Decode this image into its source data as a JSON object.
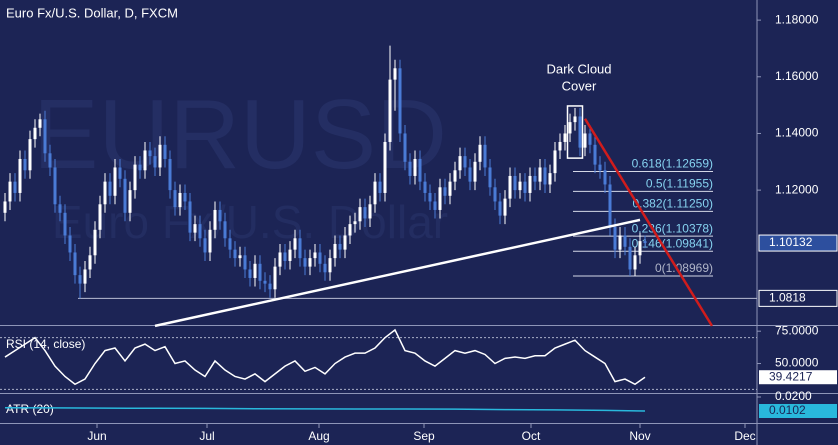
{
  "chart_data": [
    {
      "type": "candlestick",
      "title": "Euro Fx/U.S. Dollar, D, FXCM",
      "watermark": [
        "EURUSD",
        "Euro Fx/U.S. Dollar"
      ],
      "up_color": "#ffffff",
      "down_color": "#4a7bd6",
      "x": [
        0,
        1,
        2,
        3,
        4,
        5,
        6,
        7,
        8,
        9,
        10,
        11,
        12,
        13,
        14,
        15,
        16,
        17,
        18,
        19,
        20,
        21,
        22,
        23,
        24,
        25,
        26,
        27,
        28,
        29,
        30,
        31,
        32,
        33,
        34,
        35,
        36,
        37,
        38,
        39,
        40,
        41,
        42,
        43,
        44,
        45,
        46,
        47,
        48,
        49,
        50,
        51,
        52,
        53,
        54,
        55,
        56,
        57,
        58,
        59,
        60,
        61,
        62,
        63,
        64,
        65,
        66,
        67,
        68,
        69,
        70,
        71,
        72,
        73,
        74,
        75,
        76,
        77,
        78,
        79,
        80,
        81,
        82,
        83,
        84,
        85,
        86,
        87,
        88,
        89,
        90,
        91,
        92,
        93,
        94,
        95,
        96,
        97,
        98,
        99,
        100,
        101,
        102,
        103,
        104,
        105,
        106,
        107,
        108,
        109,
        110,
        111,
        112,
        113,
        114,
        115,
        116,
        117,
        118,
        119,
        120,
        121,
        122,
        123,
        124,
        125,
        126,
        127,
        128
      ],
      "open": [
        1.112,
        1.116,
        1.123,
        1.119,
        1.131,
        1.127,
        1.138,
        1.142,
        1.145,
        1.133,
        1.128,
        1.115,
        1.112,
        1.104,
        1.098,
        1.09,
        1.087,
        1.092,
        1.097,
        1.106,
        1.115,
        1.123,
        1.118,
        1.128,
        1.124,
        1.112,
        1.12,
        1.129,
        1.127,
        1.134,
        1.132,
        1.128,
        1.136,
        1.131,
        1.12,
        1.114,
        1.119,
        1.116,
        1.105,
        1.108,
        1.103,
        1.098,
        1.106,
        1.113,
        1.109,
        1.103,
        1.099,
        1.096,
        1.097,
        1.092,
        1.089,
        1.094,
        1.088,
        1.087,
        1.085,
        1.093,
        1.098,
        1.095,
        1.099,
        1.103,
        1.096,
        1.093,
        1.096,
        1.098,
        1.094,
        1.091,
        1.096,
        1.101,
        1.099,
        1.104,
        1.108,
        1.109,
        1.114,
        1.11,
        1.115,
        1.123,
        1.119,
        1.137,
        1.159,
        1.163,
        1.14,
        1.13,
        1.125,
        1.131,
        1.123,
        1.119,
        1.116,
        1.113,
        1.121,
        1.118,
        1.123,
        1.127,
        1.132,
        1.128,
        1.123,
        1.13,
        1.136,
        1.128,
        1.121,
        1.116,
        1.111,
        1.117,
        1.125,
        1.12,
        1.123,
        1.119,
        1.125,
        1.123,
        1.128,
        1.122,
        1.126,
        1.134,
        1.137,
        1.14,
        1.144,
        1.146,
        1.135,
        1.14,
        1.136,
        1.129,
        1.127,
        1.122,
        1.107,
        1.099,
        1.104,
        1.1,
        1.092,
        1.097,
        1.102
      ],
      "high": [
        1.119,
        1.126,
        1.126,
        1.134,
        1.134,
        1.141,
        1.145,
        1.147,
        1.148,
        1.136,
        1.131,
        1.118,
        1.115,
        1.107,
        1.101,
        1.093,
        1.095,
        1.1,
        1.109,
        1.118,
        1.126,
        1.126,
        1.131,
        1.131,
        1.127,
        1.123,
        1.132,
        1.132,
        1.137,
        1.137,
        1.135,
        1.139,
        1.139,
        1.134,
        1.123,
        1.122,
        1.122,
        1.119,
        1.111,
        1.111,
        1.106,
        1.109,
        1.116,
        1.116,
        1.112,
        1.106,
        1.102,
        1.1,
        1.1,
        1.095,
        1.097,
        1.097,
        1.091,
        1.09,
        1.096,
        1.101,
        1.101,
        1.102,
        1.106,
        1.106,
        1.099,
        1.099,
        1.101,
        1.101,
        1.097,
        1.099,
        1.104,
        1.104,
        1.107,
        1.111,
        1.112,
        1.117,
        1.117,
        1.118,
        1.126,
        1.126,
        1.14,
        1.171,
        1.166,
        1.166,
        1.143,
        1.133,
        1.134,
        1.134,
        1.126,
        1.122,
        1.119,
        1.124,
        1.124,
        1.126,
        1.13,
        1.135,
        1.135,
        1.131,
        1.133,
        1.139,
        1.139,
        1.131,
        1.124,
        1.119,
        1.12,
        1.128,
        1.128,
        1.126,
        1.126,
        1.128,
        1.128,
        1.131,
        1.131,
        1.129,
        1.137,
        1.14,
        1.143,
        1.147,
        1.149,
        1.149,
        1.143,
        1.143,
        1.139,
        1.132,
        1.13,
        1.125,
        1.11,
        1.107,
        1.107,
        1.103,
        1.1,
        1.105,
        1.104
      ],
      "low": [
        1.109,
        1.113,
        1.116,
        1.116,
        1.124,
        1.124,
        1.135,
        1.139,
        1.13,
        1.125,
        1.112,
        1.109,
        1.101,
        1.095,
        1.087,
        1.0818,
        1.084,
        1.089,
        1.094,
        1.103,
        1.112,
        1.115,
        1.115,
        1.121,
        1.109,
        1.109,
        1.117,
        1.124,
        1.124,
        1.129,
        1.125,
        1.125,
        1.128,
        1.117,
        1.111,
        1.111,
        1.113,
        1.102,
        1.102,
        1.1,
        1.095,
        1.095,
        1.103,
        1.106,
        1.1,
        1.096,
        1.093,
        1.093,
        1.089,
        1.086,
        1.086,
        1.085,
        1.084,
        1.082,
        1.082,
        1.09,
        1.092,
        1.092,
        1.096,
        1.093,
        1.09,
        1.09,
        1.093,
        1.091,
        1.088,
        1.088,
        1.093,
        1.096,
        1.096,
        1.101,
        1.105,
        1.106,
        1.107,
        1.107,
        1.112,
        1.116,
        1.116,
        1.134,
        1.148,
        1.137,
        1.127,
        1.122,
        1.122,
        1.12,
        1.116,
        1.113,
        1.11,
        1.11,
        1.115,
        1.115,
        1.12,
        1.124,
        1.125,
        1.12,
        1.12,
        1.127,
        1.125,
        1.118,
        1.113,
        1.108,
        1.108,
        1.114,
        1.117,
        1.117,
        1.116,
        1.116,
        1.12,
        1.12,
        1.119,
        1.119,
        1.123,
        1.131,
        1.134,
        1.137,
        1.141,
        1.132,
        1.132,
        1.133,
        1.126,
        1.124,
        1.119,
        1.104,
        1.096,
        1.096,
        1.097,
        1.0897,
        1.0897,
        1.094,
        1.0995
      ],
      "close": [
        1.116,
        1.123,
        1.119,
        1.131,
        1.127,
        1.138,
        1.142,
        1.145,
        1.133,
        1.128,
        1.115,
        1.112,
        1.104,
        1.098,
        1.09,
        1.087,
        1.092,
        1.097,
        1.106,
        1.115,
        1.123,
        1.118,
        1.128,
        1.124,
        1.112,
        1.12,
        1.129,
        1.127,
        1.134,
        1.132,
        1.128,
        1.136,
        1.131,
        1.12,
        1.114,
        1.119,
        1.116,
        1.105,
        1.108,
        1.103,
        1.098,
        1.106,
        1.113,
        1.109,
        1.103,
        1.099,
        1.096,
        1.097,
        1.092,
        1.089,
        1.094,
        1.088,
        1.087,
        1.085,
        1.093,
        1.098,
        1.095,
        1.099,
        1.103,
        1.096,
        1.093,
        1.096,
        1.098,
        1.094,
        1.091,
        1.096,
        1.101,
        1.099,
        1.104,
        1.108,
        1.109,
        1.114,
        1.11,
        1.115,
        1.123,
        1.119,
        1.137,
        1.159,
        1.163,
        1.14,
        1.13,
        1.125,
        1.131,
        1.123,
        1.119,
        1.116,
        1.113,
        1.121,
        1.118,
        1.123,
        1.127,
        1.132,
        1.128,
        1.123,
        1.13,
        1.136,
        1.128,
        1.121,
        1.116,
        1.111,
        1.117,
        1.125,
        1.12,
        1.123,
        1.119,
        1.125,
        1.123,
        1.128,
        1.122,
        1.126,
        1.134,
        1.137,
        1.14,
        1.144,
        1.146,
        1.135,
        1.14,
        1.136,
        1.129,
        1.127,
        1.122,
        1.107,
        1.099,
        1.104,
        1.1,
        1.092,
        1.097,
        1.102,
        1.10132
      ],
      "xlim": [
        -1,
        150.4
      ],
      "ylim": [
        1.0724,
        1.1871
      ],
      "xticks": [
        {
          "value": 18.4,
          "label": "Jun"
        },
        {
          "value": 40.4,
          "label": "Jul"
        },
        {
          "value": 62.8,
          "label": "Aug"
        },
        {
          "value": 83.8,
          "label": "Sep"
        },
        {
          "value": 105.2,
          "label": "Oct"
        },
        {
          "value": 127,
          "label": "Nov"
        },
        {
          "value": 148,
          "label": "Dec"
        }
      ],
      "yticks": [
        {
          "value": 1.12,
          "label": "1.12000"
        },
        {
          "value": 1.14,
          "label": "1.14000"
        },
        {
          "value": 1.16,
          "label": "1.16000"
        },
        {
          "value": 1.18,
          "label": "1.18000"
        }
      ],
      "support": 1.0818,
      "fibonacci": {
        "x": [
          113.6,
          141.6
        ],
        "color": "#d4d8e6",
        "label_color": "#86d3f0",
        "levels": [
          {
            "value": 1.12659,
            "label": "0.618(1.12659)"
          },
          {
            "value": 1.11955,
            "label": "0.5(1.11955)"
          },
          {
            "value": 1.1125,
            "label": "0.382(1.11250)"
          },
          {
            "value": 1.10378,
            "label": "0.236(1.10378)"
          },
          {
            "value": 1.09841,
            "label": "0.146(1.09841)"
          },
          {
            "value": 1.08969,
            "label": "0(1.08969)"
          }
        ]
      },
      "trendlines": [
        {
          "x": [
            30,
            127
          ],
          "y": [
            1.0721,
            1.1095
          ],
          "color": "#ffffff"
        },
        {
          "x": [
            116,
            141.4
          ],
          "y": [
            1.1452,
            1.0721
          ],
          "color": "#d01c1c"
        }
      ],
      "annotation": [
        "Dark Cloud",
        "Cover"
      ]
    },
    {
      "type": "line",
      "title": "RSI (14, close)",
      "color": "#ffffff",
      "x": [
        0,
        2,
        4,
        6,
        8,
        10,
        12,
        14,
        16,
        18,
        20,
        22,
        24,
        26,
        28,
        30,
        32,
        34,
        36,
        38,
        40,
        42,
        44,
        46,
        48,
        50,
        52,
        54,
        56,
        58,
        60,
        62,
        64,
        66,
        68,
        70,
        72,
        74,
        76,
        78,
        80,
        82,
        84,
        86,
        88,
        90,
        92,
        94,
        96,
        98,
        100,
        102,
        104,
        106,
        108,
        110,
        112,
        114,
        116,
        118,
        120,
        122,
        124,
        126,
        128
      ],
      "values": [
        55,
        60,
        65,
        70,
        60,
        48,
        40,
        34,
        38,
        50,
        60,
        62,
        52,
        62,
        65,
        60,
        63,
        50,
        52,
        45,
        40,
        52,
        45,
        40,
        38,
        42,
        36,
        42,
        48,
        52,
        44,
        47,
        42,
        50,
        55,
        58,
        58,
        62,
        70,
        76,
        60,
        58,
        52,
        48,
        54,
        60,
        58,
        60,
        57,
        50,
        54,
        55,
        54,
        56,
        56,
        62,
        65,
        68,
        60,
        55,
        50,
        36,
        38,
        34,
        39.4217
      ],
      "xlim": [
        -1,
        150.4
      ],
      "ylim": [
        28,
        79
      ],
      "levels": [
        30,
        70
      ],
      "yticks": [
        {
          "value": 50,
          "label": "50.0000"
        },
        {
          "value": 75,
          "label": "75.0000"
        }
      ]
    },
    {
      "type": "line",
      "title": "ATR (20)",
      "color": "#29b8dc",
      "x": [
        0,
        10,
        20,
        30,
        40,
        50,
        60,
        70,
        80,
        90,
        100,
        110,
        120,
        128
      ],
      "values": [
        0.0125,
        0.0124,
        0.0122,
        0.0121,
        0.012,
        0.0118,
        0.0117,
        0.0116,
        0.0116,
        0.0115,
        0.0112,
        0.011,
        0.0106,
        0.0102
      ],
      "xlim": [
        -1,
        150.4
      ],
      "ylim": [
        0.0039,
        0.0221
      ],
      "yticks": [
        {
          "value": 0.02,
          "label": "0.0200"
        }
      ]
    }
  ]
}
